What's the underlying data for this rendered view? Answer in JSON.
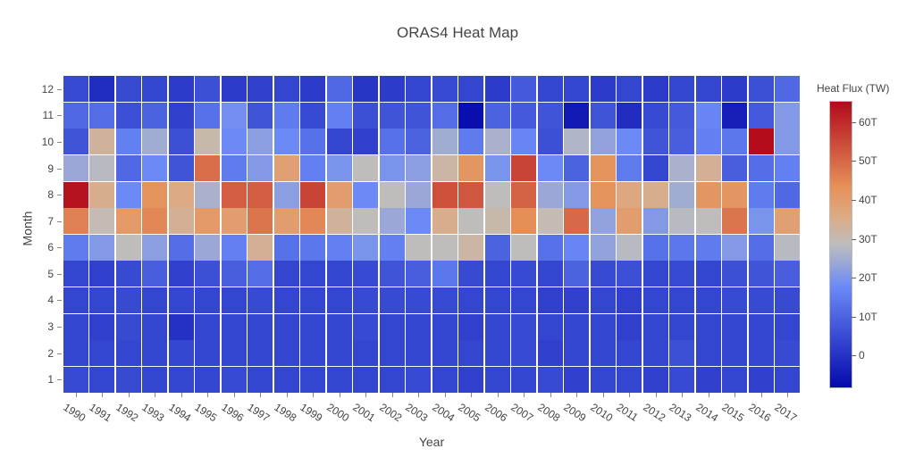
{
  "chart_data": {
    "type": "heatmap",
    "title": "ORAS4 Heat Map",
    "xlabel": "Year",
    "ylabel": "Month",
    "years": [
      "1990",
      "1991",
      "1992",
      "1993",
      "1994",
      "1995",
      "1996",
      "1997",
      "1998",
      "1999",
      "2000",
      "2001",
      "2002",
      "2003",
      "2004",
      "2005",
      "2006",
      "2007",
      "2008",
      "2009",
      "2010",
      "2011",
      "2012",
      "2013",
      "2014",
      "2015",
      "2016",
      "2017"
    ],
    "months": [
      "1",
      "2",
      "3",
      "4",
      "5",
      "6",
      "7",
      "8",
      "9",
      "10",
      "11",
      "12"
    ],
    "z_comment": "z[monthIndex][yearIndex], month 1 first, units TW, estimated from colors",
    "z": [
      [
        5,
        4,
        5,
        4,
        4,
        4,
        5,
        4,
        4,
        4,
        4,
        4,
        4,
        5,
        4,
        3,
        4,
        4,
        5,
        3,
        4,
        4,
        3,
        5,
        3,
        4,
        3,
        4
      ],
      [
        4,
        4,
        4,
        4,
        4,
        4,
        4,
        4,
        4,
        4,
        4,
        4,
        4,
        4,
        4,
        4,
        4,
        5,
        3,
        4,
        4,
        4,
        4,
        6,
        4,
        4,
        4,
        5
      ],
      [
        4,
        3,
        5,
        4,
        0,
        4,
        4,
        4,
        4,
        4,
        4,
        5,
        4,
        4,
        4,
        3,
        4,
        5,
        4,
        4,
        4,
        3,
        4,
        4,
        4,
        4,
        4,
        4
      ],
      [
        4,
        4,
        5,
        4,
        4,
        4,
        4,
        5,
        4,
        4,
        4,
        5,
        5,
        5,
        5,
        4,
        4,
        4,
        3,
        3,
        4,
        3,
        4,
        4,
        4,
        5,
        5,
        5
      ],
      [
        4,
        3,
        5,
        9,
        3,
        6,
        9,
        12,
        4,
        4,
        4,
        5,
        7,
        9,
        14,
        5,
        4,
        5,
        4,
        10,
        5,
        6,
        4,
        5,
        4,
        6,
        7,
        9
      ],
      [
        15,
        21,
        29,
        22,
        12,
        24,
        16,
        34,
        13,
        14,
        16,
        20,
        16,
        29,
        29,
        32,
        10,
        29,
        13,
        17,
        23,
        28,
        13,
        14,
        15,
        21,
        12,
        28
      ],
      [
        46,
        30,
        41,
        45,
        34,
        41,
        40,
        48,
        40,
        45,
        33,
        29,
        24,
        18,
        35,
        29,
        31,
        44,
        30,
        50,
        23,
        40,
        21,
        28,
        29,
        48,
        20,
        39
      ],
      [
        64,
        35,
        18,
        43,
        36,
        26,
        52,
        52,
        22,
        56,
        40,
        18,
        29,
        24,
        54,
        53,
        29,
        51,
        24,
        21,
        43,
        37,
        35,
        25,
        42,
        42,
        15,
        11
      ],
      [
        24,
        28,
        11,
        18,
        7,
        49,
        15,
        21,
        39,
        16,
        20,
        29,
        20,
        22,
        32,
        42,
        20,
        56,
        18,
        10,
        43,
        15,
        4,
        26,
        34,
        9,
        12,
        16
      ],
      [
        7,
        33,
        16,
        25,
        6,
        31,
        18,
        22,
        18,
        13,
        4,
        3,
        13,
        10,
        25,
        15,
        26,
        17,
        6,
        27,
        23,
        18,
        7,
        9,
        16,
        14,
        65,
        21
      ],
      [
        11,
        12,
        6,
        10,
        3,
        13,
        19,
        7,
        15,
        5,
        16,
        6,
        7,
        7,
        12,
        -7,
        10,
        8,
        7,
        -5,
        7,
        -1,
        5,
        8,
        17,
        -4,
        8,
        21
      ],
      [
        5,
        -1,
        5,
        4,
        2,
        6,
        2,
        3,
        4,
        2,
        11,
        1,
        2,
        4,
        5,
        4,
        2,
        8,
        4,
        4,
        2,
        4,
        2,
        4,
        4,
        2,
        6,
        11
      ]
    ],
    "zmin": -8,
    "zmax": 65.5,
    "colorscale": [
      [
        0.0,
        "#050aac"
      ],
      [
        0.35,
        "#6a89f7"
      ],
      [
        0.5,
        "#bebebe"
      ],
      [
        0.6,
        "#dcaa84"
      ],
      [
        0.7,
        "#e6915a"
      ],
      [
        1.0,
        "#b20a1c"
      ]
    ],
    "grid": "white gaps between cells",
    "legend_position": "right colorbar",
    "colorbar": {
      "title": "Heat Flux (TW)",
      "ticks": [
        {
          "value": 0,
          "label": "0"
        },
        {
          "value": 10,
          "label": "10T"
        },
        {
          "value": 20,
          "label": "20T"
        },
        {
          "value": 30,
          "label": "30T"
        },
        {
          "value": 40,
          "label": "40T"
        },
        {
          "value": 50,
          "label": "50T"
        },
        {
          "value": 60,
          "label": "60T"
        }
      ]
    }
  }
}
